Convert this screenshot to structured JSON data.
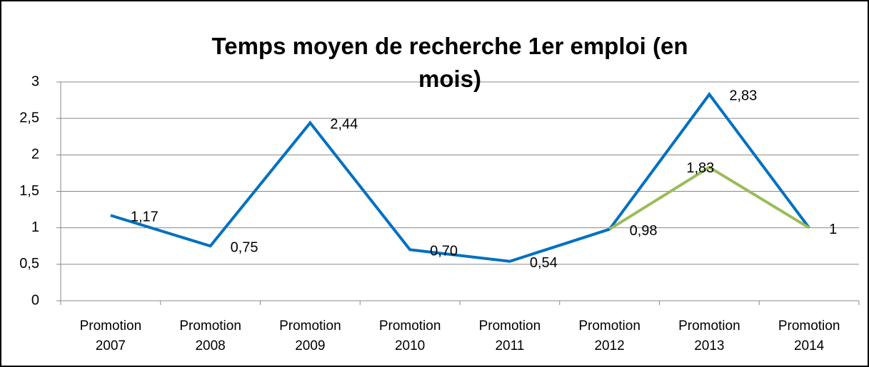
{
  "chart_data": {
    "type": "line",
    "title": "Temps moyen de recherche  1er emploi (en mois)",
    "categories": [
      "Promotion 2007",
      "Promotion 2008",
      "Promotion 2009",
      "Promotion 2010",
      "Promotion 2011",
      "Promotion 2012",
      "Promotion 2013",
      "Promotion 2014"
    ],
    "series": [
      {
        "color": "#0070c0",
        "values": [
          1.17,
          0.75,
          2.44,
          0.7,
          0.54,
          0.98,
          2.83,
          1
        ],
        "value_labels": [
          "1,17",
          "0,75",
          "2,44",
          "0,70",
          "0,54",
          "0,98",
          "2,83",
          "1"
        ]
      },
      {
        "color": "#9bbb59",
        "values": [
          null,
          null,
          null,
          null,
          null,
          0.98,
          1.83,
          1
        ],
        "value_labels": [
          null,
          null,
          null,
          null,
          null,
          null,
          "1,83",
          null
        ]
      }
    ],
    "ylim": [
      0,
      3
    ],
    "yticks": [
      0,
      {
        "value": 0.5,
        "label": "0,5"
      },
      1,
      {
        "value": 1.5,
        "label": "1,5"
      },
      2,
      {
        "value": 2.5,
        "label": "2,5"
      },
      3
    ],
    "grid": true
  }
}
